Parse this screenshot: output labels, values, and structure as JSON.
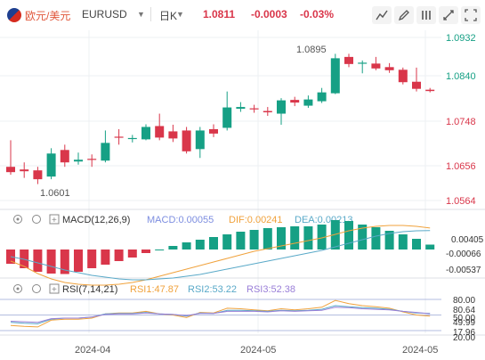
{
  "header": {
    "pair_name": "欧元/美元",
    "symbol": "EURUSD",
    "period": "日K",
    "price": "1.0811",
    "change": "-0.0003",
    "change_pct": "-0.03%",
    "toolbar_icons": [
      "draw-line-icon",
      "draw-brush-icon",
      "pen-icon",
      "settings-icon",
      "fullscreen-icon"
    ]
  },
  "price_axis": [
    "1.0932",
    "1.0840",
    "1.0748",
    "1.0656",
    "1.0564"
  ],
  "annotations": {
    "high": "1.0895",
    "low": "1.0601"
  },
  "macd": {
    "label": "MACD(12,26,9)",
    "macd": "MACD:0.00055",
    "dif": "DIF:0.00241",
    "dea": "DEA:0.00213",
    "axis": [
      "0.00405",
      "-0.00066",
      "-0.00537"
    ]
  },
  "rsi": {
    "label": "RSI(7,14,21)",
    "rsi1": "RSI1:47.87",
    "rsi2": "RSI2:53.22",
    "rsi3": "RSI3:52.38",
    "axis": [
      "80.00",
      "80.64",
      "50.00",
      "49.99",
      "17.96",
      "20.00"
    ]
  },
  "time_axis": [
    "2024-04",
    "2024-05",
    "2024-05"
  ],
  "colors": {
    "up": "#16a085",
    "down": "#d9364a",
    "macd_line": "#7d8ee0",
    "dif_line": "#f0a23c",
    "dea_line": "#59a9c8"
  },
  "chart_data": {
    "type": "candlestick",
    "candles": [
      {
        "o": 1.064,
        "c": 1.0628,
        "h": 1.07,
        "l": 1.0622
      },
      {
        "o": 1.0634,
        "c": 1.063,
        "h": 1.065,
        "l": 1.0615
      },
      {
        "o": 1.0632,
        "c": 1.0612,
        "h": 1.064,
        "l": 1.0601
      },
      {
        "o": 1.0618,
        "c": 1.067,
        "h": 1.0682,
        "l": 1.0612
      },
      {
        "o": 1.0678,
        "c": 1.065,
        "h": 1.069,
        "l": 1.064
      },
      {
        "o": 1.0652,
        "c": 1.0656,
        "h": 1.0672,
        "l": 1.0645
      },
      {
        "o": 1.0658,
        "c": 1.0656,
        "h": 1.0668,
        "l": 1.064
      },
      {
        "o": 1.0654,
        "c": 1.0694,
        "h": 1.0722,
        "l": 1.065
      },
      {
        "o": 1.0708,
        "c": 1.0706,
        "h": 1.0725,
        "l": 1.069
      },
      {
        "o": 1.0704,
        "c": 1.0705,
        "h": 1.0712,
        "l": 1.0695
      },
      {
        "o": 1.0702,
        "c": 1.073,
        "h": 1.0736,
        "l": 1.07
      },
      {
        "o": 1.0732,
        "c": 1.0706,
        "h": 1.076,
        "l": 1.07
      },
      {
        "o": 1.072,
        "c": 1.0704,
        "h": 1.0735,
        "l": 1.0696
      },
      {
        "o": 1.0722,
        "c": 1.0675,
        "h": 1.073,
        "l": 1.067
      },
      {
        "o": 1.068,
        "c": 1.0722,
        "h": 1.073,
        "l": 1.066
      },
      {
        "o": 1.0725,
        "c": 1.0715,
        "h": 1.0736,
        "l": 1.0707
      },
      {
        "o": 1.0728,
        "c": 1.0774,
        "h": 1.081,
        "l": 1.0722
      },
      {
        "o": 1.0771,
        "c": 1.0775,
        "h": 1.0786,
        "l": 1.0764
      },
      {
        "o": 1.0772,
        "c": 1.077,
        "h": 1.078,
        "l": 1.0762
      },
      {
        "o": 1.0766,
        "c": 1.0763,
        "h": 1.0775,
        "l": 1.0755
      },
      {
        "o": 1.076,
        "c": 1.079,
        "h": 1.0795,
        "l": 1.0735
      },
      {
        "o": 1.0791,
        "c": 1.0785,
        "h": 1.0798,
        "l": 1.0777
      },
      {
        "o": 1.0778,
        "c": 1.0792,
        "h": 1.0801,
        "l": 1.0773
      },
      {
        "o": 1.0788,
        "c": 1.0808,
        "h": 1.0818,
        "l": 1.0784
      },
      {
        "o": 1.0806,
        "c": 1.0885,
        "h": 1.0895,
        "l": 1.0804
      },
      {
        "o": 1.0888,
        "c": 1.0872,
        "h": 1.0895,
        "l": 1.0865
      },
      {
        "o": 1.0874,
        "c": 1.0875,
        "h": 1.088,
        "l": 1.0851
      },
      {
        "o": 1.0873,
        "c": 1.0862,
        "h": 1.0888,
        "l": 1.0858
      },
      {
        "o": 1.0865,
        "c": 1.0858,
        "h": 1.0874,
        "l": 1.0852
      },
      {
        "o": 1.0859,
        "c": 1.0831,
        "h": 1.0864,
        "l": 1.0826
      },
      {
        "o": 1.0832,
        "c": 1.0816,
        "h": 1.0864,
        "l": 1.081
      },
      {
        "o": 1.0814,
        "c": 1.0811,
        "h": 1.0818,
        "l": 1.0808
      }
    ],
    "macd_hist": [
      -0.0016,
      -0.0021,
      -0.0025,
      -0.0027,
      -0.00275,
      -0.0025,
      -0.0021,
      -0.0017,
      -0.0013,
      -0.0009,
      -0.0004,
      0.0,
      0.0004,
      0.0008,
      0.0011,
      0.0014,
      0.0017,
      0.002,
      0.0022,
      0.0024,
      0.0025,
      0.0026,
      0.0026,
      0.0028,
      0.0033,
      0.0032,
      0.0028,
      0.0025,
      0.0021,
      0.0017,
      0.0012,
      0.00055
    ],
    "dif": [
      -0.0013,
      -0.0019,
      -0.0027,
      -0.0033,
      -0.0037,
      -0.0039,
      -0.004,
      -0.004,
      -0.0039,
      -0.0037,
      -0.0034,
      -0.003,
      -0.0026,
      -0.0022,
      -0.0018,
      -0.0014,
      -0.001,
      -0.0006,
      -0.0002,
      0.0001,
      0.0004,
      0.0007,
      0.001,
      0.0013,
      0.0017,
      0.0021,
      0.0024,
      0.0026,
      0.0027,
      0.0027,
      0.0026,
      0.00241
    ],
    "dea": [
      -0.0008,
      -0.0011,
      -0.0015,
      -0.0019,
      -0.0023,
      -0.0026,
      -0.0029,
      -0.0031,
      -0.0033,
      -0.0034,
      -0.0034,
      -0.0033,
      -0.0032,
      -0.003,
      -0.0028,
      -0.0025,
      -0.0022,
      -0.0019,
      -0.0016,
      -0.0013,
      -0.001,
      -0.0007,
      -0.0004,
      -0.0001,
      0.0003,
      0.0007,
      0.0011,
      0.0015,
      0.0018,
      0.002,
      0.0021,
      0.00213
    ],
    "rsi1": [
      30,
      28,
      27,
      40,
      42,
      42,
      44,
      52,
      54,
      54,
      57,
      52,
      50,
      45,
      55,
      54,
      63,
      62,
      60,
      58,
      62,
      60,
      62,
      65,
      78,
      72,
      68,
      66,
      63,
      56,
      50,
      47.87
    ],
    "rsi2": [
      36,
      34,
      33,
      42,
      44,
      44,
      46,
      52,
      53,
      53,
      55,
      52,
      51,
      48,
      54,
      53,
      59,
      59,
      58,
      57,
      59,
      58,
      59,
      61,
      68,
      66,
      64,
      63,
      61,
      57,
      54,
      53.22
    ],
    "rsi3": [
      38,
      37,
      36,
      43,
      44,
      44,
      46,
      51,
      52,
      52,
      54,
      52,
      51,
      49,
      53,
      53,
      57,
      57,
      57,
      56,
      58,
      57,
      58,
      59,
      65,
      64,
      62,
      61,
      60,
      57,
      55,
      52.38
    ]
  }
}
